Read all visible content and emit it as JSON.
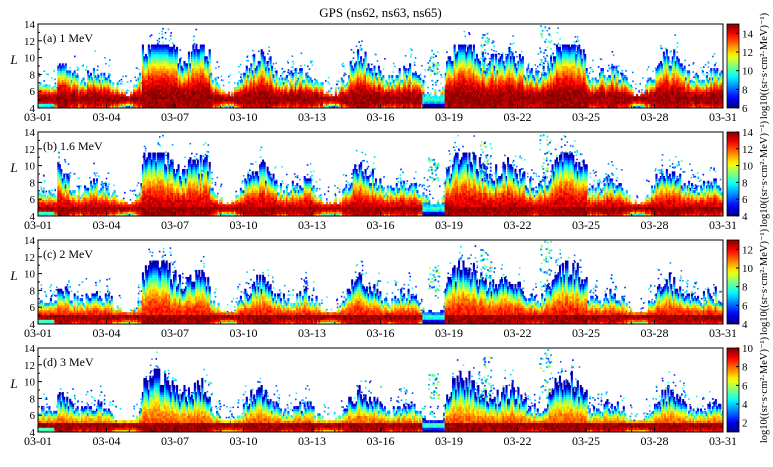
{
  "chart_data": [
    {
      "type": "heatmap",
      "figure_title": "GPS (ns62, ns63, ns65)",
      "panel_label": "(a) 1 MeV",
      "ylabel": "L",
      "ylim": [
        4,
        14
      ],
      "yticks": [
        "4",
        "6",
        "8",
        "10",
        "12",
        "14"
      ],
      "xlim_days": [
        0,
        30
      ],
      "xtick_days": [
        0,
        3,
        6,
        9,
        12,
        15,
        18,
        21,
        24,
        27,
        30
      ],
      "xticks": [
        "03-01",
        "03-04",
        "03-07",
        "03-10",
        "03-13",
        "03-16",
        "03-19",
        "03-22",
        "03-25",
        "03-28",
        "03-31"
      ],
      "colorbar_label": "log10((sr·s·cm²·MeV)⁻¹)",
      "colorbar_range": [
        6,
        15
      ],
      "colorbar_ticks": [
        "6",
        "8",
        "10",
        "12",
        "14"
      ],
      "peak_L": 5.0,
      "upper_extent_L": 10.5,
      "storm_peaks": [
        {
          "day": 17.3,
          "L": 11
        },
        {
          "day": 19.6,
          "L": 13
        },
        {
          "day": 22.2,
          "L": 14
        }
      ]
    },
    {
      "type": "heatmap",
      "panel_label": "(b) 1.6 MeV",
      "ylabel": "L",
      "ylim": [
        4,
        14
      ],
      "yticks": [
        "4",
        "6",
        "8",
        "10",
        "12",
        "14"
      ],
      "xlim_days": [
        0,
        30
      ],
      "xtick_days": [
        0,
        3,
        6,
        9,
        12,
        15,
        18,
        21,
        24,
        27,
        30
      ],
      "xticks": [
        "03-01",
        "03-04",
        "03-07",
        "03-10",
        "03-13",
        "03-16",
        "03-19",
        "03-22",
        "03-25",
        "03-28",
        "03-31"
      ],
      "colorbar_label": "log10((sr·s·cm²·MeV)⁻¹)",
      "colorbar_range": [
        4,
        14
      ],
      "colorbar_ticks": [
        "4",
        "6",
        "8",
        "10",
        "12",
        "14"
      ],
      "peak_L": 4.9,
      "upper_extent_L": 10,
      "storm_peaks": [
        {
          "day": 17.3,
          "L": 11
        },
        {
          "day": 19.6,
          "L": 13
        },
        {
          "day": 22.2,
          "L": 14
        }
      ]
    },
    {
      "type": "heatmap",
      "panel_label": "(c) 2 MeV",
      "ylabel": "L",
      "ylim": [
        4,
        14
      ],
      "yticks": [
        "4",
        "6",
        "8",
        "10",
        "12",
        "14"
      ],
      "xlim_days": [
        0,
        30
      ],
      "xtick_days": [
        0,
        3,
        6,
        9,
        12,
        15,
        18,
        21,
        24,
        27,
        30
      ],
      "xticks": [
        "03-01",
        "03-04",
        "03-07",
        "03-10",
        "03-13",
        "03-16",
        "03-19",
        "03-22",
        "03-25",
        "03-28",
        "03-31"
      ],
      "colorbar_label": "log10((sr·s·cm²·MeV)⁻¹)",
      "colorbar_range": [
        4,
        13
      ],
      "colorbar_ticks": [
        "4",
        "6",
        "8",
        "10",
        "12"
      ],
      "peak_L": 4.8,
      "upper_extent_L": 9.5,
      "storm_peaks": [
        {
          "day": 17.3,
          "L": 11
        },
        {
          "day": 19.6,
          "L": 13
        },
        {
          "day": 22.2,
          "L": 14
        }
      ]
    },
    {
      "type": "heatmap",
      "panel_label": "(d) 3 MeV",
      "ylabel": "L",
      "ylim": [
        4,
        14
      ],
      "yticks": [
        "4",
        "6",
        "8",
        "10",
        "12",
        "14"
      ],
      "xlim_days": [
        0,
        30
      ],
      "xtick_days": [
        0,
        3,
        6,
        9,
        12,
        15,
        18,
        21,
        24,
        27,
        30
      ],
      "xticks": [
        "03-01",
        "03-04",
        "03-07",
        "03-10",
        "03-13",
        "03-16",
        "03-19",
        "03-22",
        "03-25",
        "03-28",
        "03-31"
      ],
      "colorbar_label": "log10((sr·s·cm²·MeV)⁻¹)",
      "colorbar_range": [
        1,
        10
      ],
      "colorbar_ticks": [
        "2",
        "4",
        "6",
        "8",
        "10"
      ],
      "peak_L": 4.7,
      "upper_extent_L": 9,
      "storm_peaks": [
        {
          "day": 17.3,
          "L": 11
        },
        {
          "day": 19.6,
          "L": 13
        },
        {
          "day": 22.2,
          "L": 14
        }
      ]
    }
  ]
}
